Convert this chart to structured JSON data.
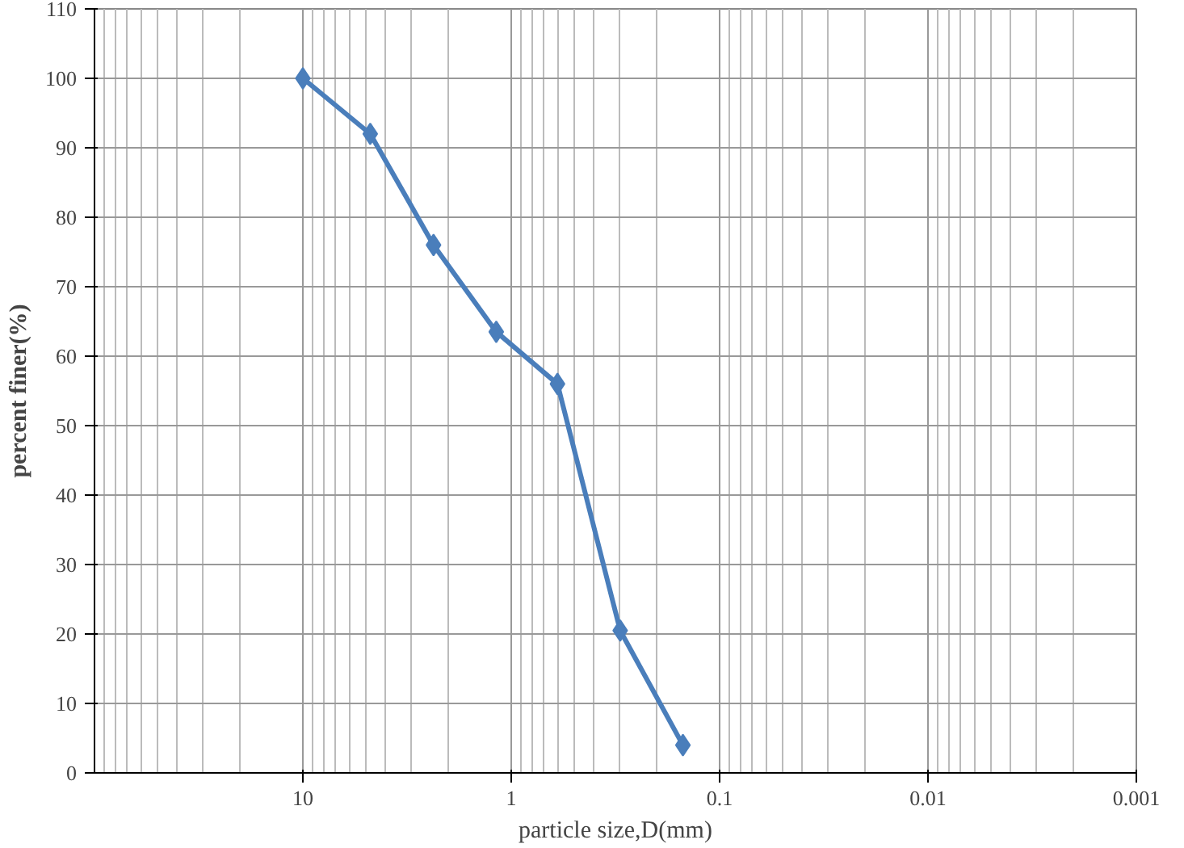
{
  "chart_data": {
    "type": "line",
    "xlabel": "particle size,D(mm)",
    "ylabel": "percent finer(%)",
    "x": [
      10,
      4.75,
      2.36,
      1.18,
      0.6,
      0.3,
      0.15
    ],
    "series": [
      {
        "color": "#4a7ebb",
        "values": [
          100,
          92,
          76,
          63.5,
          56,
          20.5,
          4
        ]
      }
    ],
    "log": "x",
    "xlim": [
      100,
      0.001
    ],
    "xticks": [
      10,
      1,
      0.1,
      0.01,
      0.001
    ],
    "ylim": [
      0,
      110
    ],
    "yticks": [
      0,
      10,
      20,
      30,
      40,
      50,
      60,
      70,
      80,
      90,
      100,
      110
    ],
    "grid": true,
    "marker": "diamond",
    "line_style": "solid"
  }
}
